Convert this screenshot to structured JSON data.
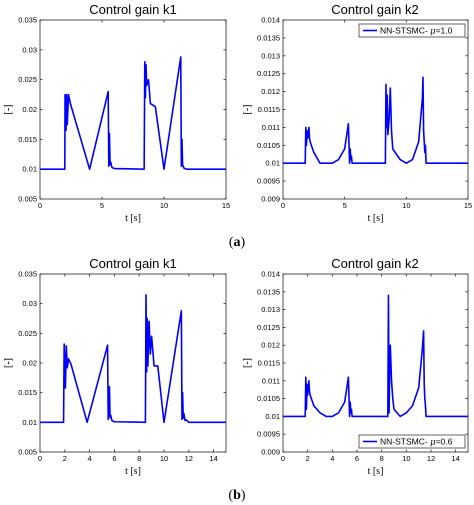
{
  "captions": [
    "(a)",
    "(b)"
  ],
  "chart_data": [
    {
      "type": "line",
      "title": "Control gain k1",
      "xlabel": "t [s]",
      "ylabel": "[-]",
      "xlim": [
        0,
        15
      ],
      "ylim": [
        0.005,
        0.035
      ],
      "xticks": [
        "0",
        "5",
        "10",
        "15"
      ],
      "yticks": [
        "0.005",
        "0.01",
        "0.015",
        "0.02",
        "0.025",
        "0.03",
        "0.035"
      ],
      "series": [
        {
          "color": "#0000ff",
          "x": [
            0,
            2.0,
            2.02,
            2.1,
            2.15,
            2.2,
            2.3,
            2.45,
            4.0,
            5.5,
            5.55,
            5.6,
            5.65,
            5.7,
            5.8,
            6.0,
            8.4,
            8.45,
            8.5,
            8.55,
            8.6,
            8.75,
            8.9,
            9.3,
            10.0,
            11.35,
            11.4,
            11.45,
            11.5,
            11.6,
            11.8,
            15
          ],
          "y": [
            0.01,
            0.01,
            0.0225,
            0.0165,
            0.0225,
            0.0175,
            0.0225,
            0.021,
            0.01,
            0.023,
            0.0105,
            0.016,
            0.0108,
            0.0112,
            0.0103,
            0.0101,
            0.01,
            0.028,
            0.022,
            0.0275,
            0.024,
            0.025,
            0.021,
            0.0205,
            0.01,
            0.0288,
            0.0105,
            0.015,
            0.0107,
            0.0102,
            0.01,
            0.01
          ]
        }
      ]
    },
    {
      "type": "line",
      "title": "Control gain k2",
      "xlabel": "t [s]",
      "ylabel": "[-]",
      "xlim": [
        0,
        15
      ],
      "ylim": [
        0.009,
        0.014
      ],
      "xticks": [
        "0",
        "5",
        "10",
        "15"
      ],
      "yticks": [
        "0.009",
        "0.0095",
        "0.01",
        "0.0105",
        "0.011",
        "0.0115",
        "0.012",
        "0.0125",
        "0.013",
        "0.0135",
        "0.014"
      ],
      "legend": {
        "label": "NN-STSMC-",
        "mu_symbol": "μ",
        "mu_value": "=1.0",
        "position": "top-right"
      },
      "series": [
        {
          "color": "#0000ff",
          "x": [
            0,
            1.8,
            1.85,
            1.9,
            1.95,
            2.0,
            2.1,
            2.15,
            2.2,
            2.5,
            3.0,
            3.5,
            4.0,
            4.5,
            5.0,
            5.3,
            5.4,
            5.45,
            5.5,
            5.55,
            5.6,
            5.7,
            8.3,
            8.35,
            8.4,
            8.45,
            8.5,
            8.6,
            8.7,
            8.8,
            8.9,
            9.5,
            10.0,
            10.5,
            11.0,
            11.3,
            11.35,
            11.4,
            11.45,
            11.5,
            11.55,
            11.6,
            11.8,
            15
          ],
          "y": [
            0.01,
            0.01,
            0.011,
            0.0105,
            0.0109,
            0.0107,
            0.011,
            0.0107,
            0.0106,
            0.0103,
            0.01,
            0.01,
            0.01,
            0.0101,
            0.0104,
            0.0111,
            0.01,
            0.0104,
            0.0101,
            0.0102,
            0.01,
            0.01,
            0.01,
            0.0122,
            0.011,
            0.0119,
            0.0108,
            0.0112,
            0.0121,
            0.0109,
            0.0104,
            0.0101,
            0.01,
            0.0101,
            0.0106,
            0.0118,
            0.0124,
            0.0109,
            0.0106,
            0.0103,
            0.0105,
            0.01,
            0.01,
            0.01
          ]
        }
      ]
    },
    {
      "type": "line",
      "title": "Control gain k1",
      "xlabel": "t [s]",
      "ylabel": "[-]",
      "xlim": [
        0,
        15
      ],
      "ylim": [
        0.005,
        0.035
      ],
      "xticks": [
        "0",
        "2",
        "4",
        "6",
        "8",
        "10",
        "12",
        "14"
      ],
      "yticks": [
        "0.005",
        "0.01",
        "0.015",
        "0.02",
        "0.025",
        "0.03",
        "0.035"
      ],
      "series": [
        {
          "color": "#0000ff",
          "x": [
            0,
            1.9,
            1.95,
            2.05,
            2.12,
            2.2,
            2.3,
            2.5,
            3.8,
            5.45,
            5.5,
            5.6,
            5.65,
            5.7,
            5.8,
            6.0,
            8.5,
            8.55,
            8.6,
            8.65,
            8.7,
            8.8,
            8.9,
            9.0,
            9.2,
            9.5,
            10.0,
            11.4,
            11.45,
            11.5,
            11.55,
            11.6,
            11.7,
            11.8,
            12.0,
            15
          ],
          "y": [
            0.01,
            0.01,
            0.0232,
            0.0158,
            0.0229,
            0.0192,
            0.0207,
            0.0198,
            0.01,
            0.023,
            0.0105,
            0.016,
            0.0108,
            0.0112,
            0.0103,
            0.0101,
            0.01,
            0.0315,
            0.0185,
            0.0275,
            0.0195,
            0.027,
            0.0215,
            0.0245,
            0.0195,
            0.0195,
            0.01,
            0.0288,
            0.0105,
            0.015,
            0.0107,
            0.0115,
            0.0103,
            0.0104,
            0.01,
            0.01
          ]
        }
      ]
    },
    {
      "type": "line",
      "title": "Control gain k2",
      "xlabel": "t [s]",
      "ylabel": "[-]",
      "xlim": [
        0,
        15
      ],
      "ylim": [
        0.009,
        0.014
      ],
      "xticks": [
        "0",
        "2",
        "4",
        "6",
        "8",
        "10",
        "12",
        "14"
      ],
      "yticks": [
        "0.009",
        "0.0095",
        "0.01",
        "0.0105",
        "0.011",
        "0.0115",
        "0.012",
        "0.0125",
        "0.013",
        "0.0135",
        "0.014"
      ],
      "legend": {
        "label": "NN-STSMC-",
        "mu_symbol": "μ",
        "mu_value": "=0.6",
        "position": "bottom-right"
      },
      "series": [
        {
          "color": "#0000ff",
          "x": [
            0,
            1.8,
            1.85,
            1.9,
            1.95,
            2.0,
            2.1,
            2.15,
            2.2,
            2.5,
            3.0,
            3.5,
            4.0,
            4.5,
            5.0,
            5.3,
            5.4,
            5.45,
            5.5,
            5.55,
            5.6,
            5.7,
            8.5,
            8.55,
            8.6,
            8.65,
            8.7,
            8.8,
            8.9,
            9.0,
            9.5,
            10.0,
            10.5,
            11.0,
            11.3,
            11.4,
            11.45,
            11.5,
            11.55,
            11.6,
            11.8,
            15
          ],
          "y": [
            0.01,
            0.01,
            0.0111,
            0.0102,
            0.0109,
            0.0106,
            0.011,
            0.0107,
            0.0106,
            0.0103,
            0.0101,
            0.01,
            0.01,
            0.0101,
            0.0104,
            0.0111,
            0.01,
            0.0104,
            0.0101,
            0.0102,
            0.01,
            0.01,
            0.01,
            0.0134,
            0.0101,
            0.0113,
            0.012,
            0.011,
            0.0105,
            0.0102,
            0.01,
            0.0101,
            0.0103,
            0.0108,
            0.0119,
            0.0124,
            0.0109,
            0.0105,
            0.0103,
            0.01,
            0.01,
            0.01
          ]
        }
      ]
    }
  ]
}
